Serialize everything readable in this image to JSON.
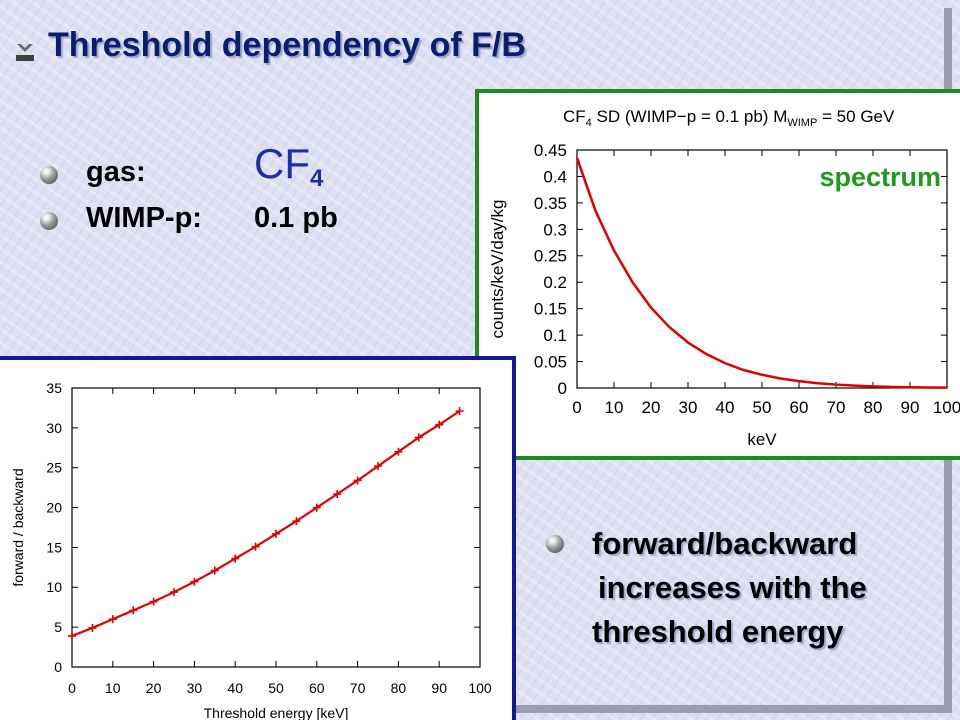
{
  "slide": {
    "title": "Threshold dependency of F/B",
    "bullets": [
      {
        "label": "gas:",
        "value": "CF",
        "value_sub": "4"
      },
      {
        "label": "WIMP-p:",
        "value": "0.1 pb"
      }
    ],
    "conclusion": {
      "line1": "forward/backward",
      "line2": "increases with the",
      "line3": "threshold energy"
    },
    "colors": {
      "title": "#0b1d6e",
      "accent": "#1d2ea8",
      "curve": "#e00000",
      "spectrum_label": "#1e9a1e",
      "spectrum_border": "#1e8a1e",
      "fb_border": "#16169a"
    }
  },
  "chart_data": [
    {
      "type": "line",
      "title_parts": {
        "p1": "CF",
        "p1_sub": "4",
        "p2": " SD (WIMP−p = 0.1 pb) M",
        "p2_sub": "WIMP",
        "p3": " = 50 GeV"
      },
      "label": "spectrum",
      "xlabel": "keV",
      "ylabel": "counts/keV/day/kg",
      "xlim": [
        0,
        100
      ],
      "ylim": [
        0,
        0.45
      ],
      "xticks": [
        0,
        10,
        20,
        30,
        40,
        50,
        60,
        70,
        80,
        90,
        100
      ],
      "yticks": [
        0,
        0.05,
        0.1,
        0.15,
        0.2,
        0.25,
        0.3,
        0.35,
        0.4,
        0.45
      ],
      "ytick_labels": [
        "0",
        "0.05",
        "0.1",
        "0.15",
        "0.2",
        "0.25",
        "0.3",
        "0.35",
        "0.4",
        "0.45"
      ],
      "series": [
        {
          "x": [
            0,
            5,
            10,
            15,
            20,
            25,
            30,
            35,
            40,
            45,
            50,
            55,
            60,
            65,
            70,
            75,
            80,
            85,
            90,
            95,
            100
          ],
          "y": [
            0.435,
            0.335,
            0.26,
            0.2,
            0.152,
            0.115,
            0.086,
            0.064,
            0.047,
            0.034,
            0.025,
            0.018,
            0.013,
            0.009,
            0.0065,
            0.0045,
            0.003,
            0.002,
            0.0013,
            0.0009,
            0.0006
          ]
        }
      ]
    },
    {
      "type": "line",
      "xlabel": "Threshold energy [keV]",
      "ylabel": "forward / backward",
      "xlim": [
        0,
        100
      ],
      "ylim": [
        0,
        35
      ],
      "xticks": [
        0,
        10,
        20,
        30,
        40,
        50,
        60,
        70,
        80,
        90,
        100
      ],
      "yticks": [
        0,
        5,
        10,
        15,
        20,
        25,
        30,
        35
      ],
      "series": [
        {
          "x": [
            0,
            5,
            10,
            15,
            20,
            25,
            30,
            35,
            40,
            45,
            50,
            55,
            60,
            65,
            70,
            75,
            80,
            85,
            90,
            95
          ],
          "y": [
            3.9,
            4.9,
            6.0,
            7.1,
            8.2,
            9.4,
            10.7,
            12.1,
            13.6,
            15.1,
            16.7,
            18.3,
            20.0,
            21.7,
            23.4,
            25.2,
            27.0,
            28.8,
            30.4,
            32.1
          ]
        }
      ]
    }
  ]
}
